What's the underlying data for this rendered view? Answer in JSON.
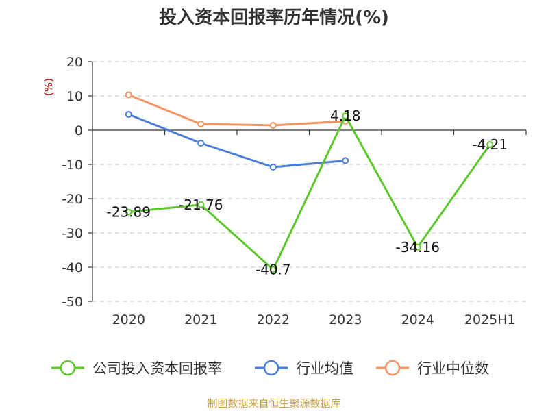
{
  "title": "投入资本回报率历年情况(%)",
  "source": "制图数据来自恒生聚源数据库",
  "chart_data": {
    "type": "line",
    "title": "投入资本回报率历年情况(%)",
    "ylabel": "(%)",
    "xlabel": "",
    "categories": [
      "2020",
      "2021",
      "2022",
      "2023",
      "2024",
      "2025H1"
    ],
    "ylim": [
      -50,
      20
    ],
    "yticks": [
      20,
      10,
      0,
      -10,
      -20,
      -30,
      -40,
      -50
    ],
    "grid": true,
    "legend_position": "bottom",
    "series": [
      {
        "name": "公司投入资本回报率",
        "color": "#5cc72a",
        "values": [
          -23.89,
          -21.76,
          -40.7,
          4.18,
          -34.16,
          -4.21
        ],
        "labels": [
          "-23.89",
          "-21.76",
          "-40.7",
          "4.18",
          "-34.16",
          "-4.21"
        ]
      },
      {
        "name": "行业均值",
        "color": "#4a7fd8",
        "values": [
          4.6,
          -3.8,
          -10.8,
          -8.9,
          null,
          null
        ]
      },
      {
        "name": "行业中位数",
        "color": "#f59361",
        "values": [
          10.3,
          1.8,
          1.4,
          2.6,
          null,
          null
        ]
      }
    ]
  }
}
